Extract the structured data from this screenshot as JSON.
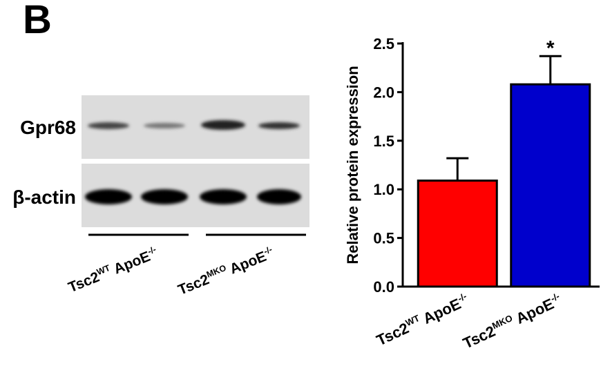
{
  "panel_label": "B",
  "blot": {
    "rows": [
      "Gpr68",
      "β-actin"
    ]
  },
  "chart_data": {
    "type": "bar",
    "y_label": "Relative protein expression",
    "categories": [
      [
        {
          "text": "Tsc2",
          "sup": false
        },
        {
          "text": "WT",
          "sup": true
        },
        {
          "text": " ApoE",
          "sup": false
        },
        {
          "text": "-/-",
          "sup": true
        }
      ],
      [
        {
          "text": "Tsc2",
          "sup": false
        },
        {
          "text": "MKO",
          "sup": true
        },
        {
          "text": " ApoE",
          "sup": false
        },
        {
          "text": "-/-",
          "sup": true
        }
      ]
    ],
    "values": [
      1.09,
      2.08
    ],
    "errors": [
      0.23,
      0.29
    ],
    "colors": [
      "#ff0000",
      "#0000cc"
    ],
    "annotations": [
      "",
      "*"
    ],
    "ylim": [
      0,
      2.5
    ],
    "yticks": [
      {
        "value": 0,
        "label": "0.0"
      },
      0.5,
      {
        "value": 1,
        "label": "1.0"
      },
      1.5,
      {
        "value": 2,
        "label": "2.0"
      },
      2.5
    ],
    "grid": false
  }
}
